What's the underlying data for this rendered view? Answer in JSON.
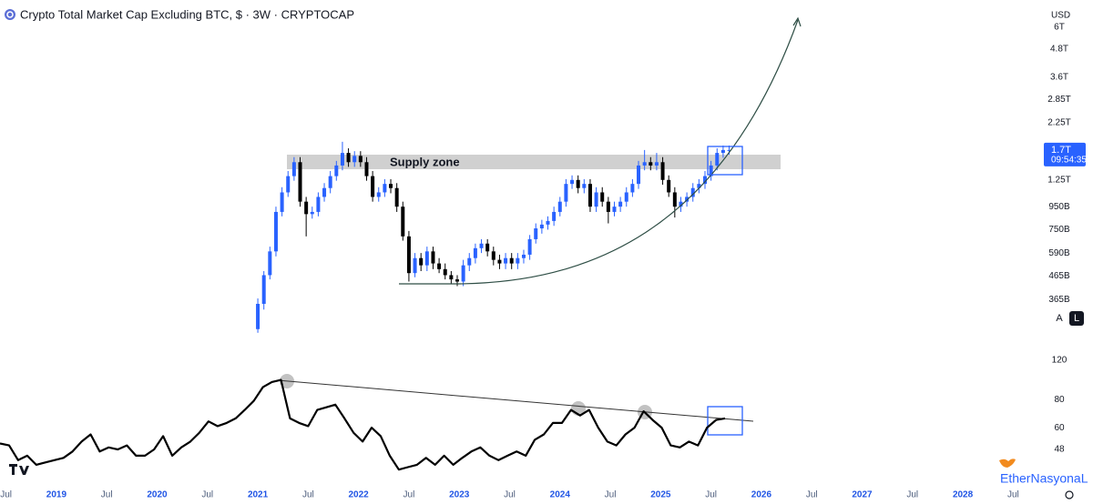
{
  "header": {
    "title": "Crypto Total Market Cap Excluding BTC, $ · 3W · CRYPTOCAP",
    "currency": "USD",
    "scale_buttons": [
      "A",
      "L"
    ],
    "watermark": "EtherNasyonaL"
  },
  "chart_data": [
    {
      "type": "candlestick",
      "x": [
        2021.0,
        2021.06,
        2021.12,
        2021.18,
        2021.24,
        2021.3,
        2021.36,
        2021.42,
        2021.48,
        2021.54,
        2021.6,
        2021.66,
        2021.72,
        2021.78,
        2021.84,
        2021.9,
        2021.96,
        2022.02,
        2022.08,
        2022.14,
        2022.2,
        2022.26,
        2022.32,
        2022.38,
        2022.44,
        2022.5,
        2022.56,
        2022.62,
        2022.68,
        2022.74,
        2022.8,
        2022.86,
        2022.92,
        2022.98,
        2023.04,
        2023.1,
        2023.16,
        2023.22,
        2023.28,
        2023.34,
        2023.4,
        2023.46,
        2023.52,
        2023.58,
        2023.64,
        2023.7,
        2023.76,
        2023.82,
        2023.88,
        2023.94,
        2024.0,
        2024.06,
        2024.12,
        2024.18,
        2024.24,
        2024.3,
        2024.36,
        2024.42,
        2024.48,
        2024.54,
        2024.6,
        2024.66,
        2024.72,
        2024.78,
        2024.84,
        2024.9,
        2024.96,
        2025.02,
        2025.08,
        2025.14,
        2025.2,
        2025.26,
        2025.32,
        2025.38,
        2025.44,
        2025.5,
        2025.56,
        2025.62,
        2025.68
      ],
      "open": [
        270,
        350,
        470,
        600,
        900,
        1100,
        1300,
        1500,
        1000,
        880,
        900,
        1050,
        1150,
        1300,
        1450,
        1650,
        1500,
        1600,
        1500,
        1300,
        1050,
        1100,
        1200,
        1150,
        950,
        700,
        480,
        560,
        520,
        600,
        530,
        500,
        470,
        450,
        440,
        520,
        560,
        620,
        650,
        600,
        550,
        530,
        560,
        530,
        560,
        580,
        680,
        760,
        790,
        820,
        900,
        1000,
        1200,
        1250,
        1150,
        1200,
        950,
        1100,
        1000,
        900,
        950,
        1000,
        1100,
        1200,
        1450,
        1500,
        1450,
        1500,
        1250,
        1100,
        950,
        1000,
        1050,
        1150,
        1200,
        1300,
        1450,
        1650,
        1700
      ],
      "high": [
        370,
        490,
        630,
        950,
        1160,
        1370,
        1580,
        1580,
        1050,
        950,
        1100,
        1210,
        1370,
        1520,
        1850,
        1730,
        1680,
        1680,
        1580,
        1370,
        1160,
        1260,
        1260,
        1210,
        1000,
        740,
        590,
        590,
        630,
        630,
        560,
        530,
        490,
        470,
        550,
        590,
        650,
        680,
        680,
        630,
        580,
        590,
        590,
        590,
        610,
        710,
        800,
        830,
        860,
        950,
        1050,
        1260,
        1310,
        1310,
        1260,
        1260,
        1160,
        1160,
        1050,
        1000,
        1050,
        1160,
        1260,
        1520,
        1700,
        1580,
        1650,
        1580,
        1310,
        1160,
        1050,
        1100,
        1210,
        1260,
        1370,
        1520,
        1730,
        1780,
        1780
      ],
      "low": [
        260,
        330,
        450,
        570,
        860,
        1050,
        1240,
        950,
        700,
        840,
        860,
        1000,
        1090,
        1240,
        1380,
        1430,
        1430,
        1430,
        1240,
        1000,
        1000,
        1050,
        1090,
        900,
        670,
        440,
        460,
        490,
        490,
        500,
        480,
        450,
        430,
        420,
        420,
        490,
        530,
        590,
        570,
        520,
        500,
        500,
        500,
        500,
        530,
        550,
        650,
        720,
        750,
        780,
        860,
        950,
        1140,
        1090,
        1090,
        900,
        900,
        950,
        800,
        860,
        900,
        950,
        1050,
        1140,
        1380,
        1380,
        1380,
        1190,
        1050,
        850,
        900,
        950,
        1000,
        1090,
        1140,
        1240,
        1380,
        1570,
        1620
      ],
      "close": [
        350,
        470,
        600,
        900,
        1100,
        1300,
        1500,
        1000,
        880,
        900,
        1050,
        1150,
        1300,
        1450,
        1650,
        1500,
        1600,
        1500,
        1300,
        1050,
        1100,
        1200,
        1150,
        950,
        700,
        480,
        560,
        520,
        600,
        530,
        500,
        470,
        450,
        440,
        520,
        560,
        620,
        650,
        600,
        550,
        530,
        560,
        530,
        560,
        580,
        680,
        760,
        790,
        820,
        900,
        1000,
        1200,
        1250,
        1150,
        1200,
        950,
        1100,
        1000,
        900,
        950,
        1000,
        1100,
        1200,
        1450,
        1500,
        1450,
        1500,
        1250,
        1100,
        950,
        1000,
        1050,
        1150,
        1200,
        1300,
        1450,
        1650,
        1700,
        1700
      ],
      "up_color": "#2962ff",
      "down_color": "#000000",
      "log_scale": true,
      "ylim": [
        250,
        6900
      ],
      "yticks": [
        {
          "value": 365,
          "label": "365B"
        },
        {
          "value": 465,
          "label": "465B"
        },
        {
          "value": 590,
          "label": "590B"
        },
        {
          "value": 750,
          "label": "750B"
        },
        {
          "value": 950,
          "label": "950B"
        },
        {
          "value": 1250,
          "label": "1.25T"
        },
        {
          "value": 2250,
          "label": "2.25T"
        },
        {
          "value": 2850,
          "label": "2.85T"
        },
        {
          "value": 3600,
          "label": "3.6T"
        },
        {
          "value": 4800,
          "label": "4.8T"
        },
        {
          "value": 6000,
          "label": "6T"
        }
      ],
      "price_tag": {
        "value": 1700,
        "label": "1.7T",
        "countdown": "09:54:35"
      },
      "annotation": "Supply zone",
      "xlim": [
        2018.44,
        2028.75
      ],
      "xticks": [
        {
          "value": 2018.5,
          "label": "Jul"
        },
        2019,
        {
          "value": 2019.5,
          "label": "Jul"
        },
        2020,
        {
          "value": 2020.5,
          "label": "Jul"
        },
        2021,
        {
          "value": 2021.5,
          "label": "Jul"
        },
        2022,
        {
          "value": 2022.5,
          "label": "Jul"
        },
        2023,
        {
          "value": 2023.5,
          "label": "Jul"
        },
        2024,
        {
          "value": 2024.5,
          "label": "Jul"
        },
        2025,
        {
          "value": 2025.5,
          "label": "Jul"
        },
        2026,
        {
          "value": 2026.5,
          "label": "Jul"
        },
        2027,
        {
          "value": 2027.5,
          "label": "Jul"
        },
        2028,
        {
          "value": 2028.5,
          "label": "Jul"
        }
      ]
    },
    {
      "type": "line",
      "x": [
        2018.44,
        2018.53,
        2018.62,
        2018.71,
        2018.8,
        2018.89,
        2018.98,
        2019.07,
        2019.16,
        2019.25,
        2019.34,
        2019.43,
        2019.52,
        2019.61,
        2019.7,
        2019.79,
        2019.88,
        2019.97,
        2020.06,
        2020.15,
        2020.24,
        2020.33,
        2020.42,
        2020.51,
        2020.6,
        2020.69,
        2020.78,
        2020.87,
        2020.96,
        2021.05,
        2021.14,
        2021.23,
        2021.32,
        2021.41,
        2021.5,
        2021.59,
        2021.68,
        2021.77,
        2021.86,
        2021.95,
        2022.04,
        2022.13,
        2022.22,
        2022.31,
        2022.4,
        2022.49,
        2022.58,
        2022.67,
        2022.76,
        2022.85,
        2022.94,
        2023.03,
        2023.12,
        2023.21,
        2023.3,
        2023.39,
        2023.48,
        2023.57,
        2023.66,
        2023.75,
        2023.84,
        2023.93,
        2024.02,
        2024.11,
        2024.2,
        2024.29,
        2024.38,
        2024.47,
        2024.56,
        2024.65,
        2024.74,
        2024.83,
        2024.92,
        2025.01,
        2025.1,
        2025.19,
        2025.28,
        2025.37,
        2025.46,
        2025.55,
        2025.64
      ],
      "values": [
        51,
        50,
        43,
        45,
        41,
        42,
        43,
        44,
        47,
        52,
        56,
        47,
        49,
        48,
        50,
        45,
        45,
        48,
        55,
        45,
        49,
        52,
        57,
        64,
        61,
        63,
        66,
        72,
        79,
        91,
        96,
        98,
        66,
        63,
        61,
        72,
        74,
        76,
        66,
        57,
        52,
        60,
        55,
        45,
        39,
        40,
        41,
        44,
        41,
        45,
        41,
        44,
        47,
        49,
        45,
        43,
        45,
        47,
        45,
        53,
        56,
        63,
        63,
        72,
        68,
        72,
        60,
        52,
        50,
        56,
        60,
        71,
        65,
        60,
        50,
        49,
        52,
        50,
        60,
        65,
        66
      ],
      "color": "#000000",
      "log_scale": true,
      "ylim": [
        38,
        146
      ],
      "yticks": [
        48,
        60,
        80,
        120
      ],
      "xlim": [
        2018.44,
        2028.75
      ]
    }
  ]
}
